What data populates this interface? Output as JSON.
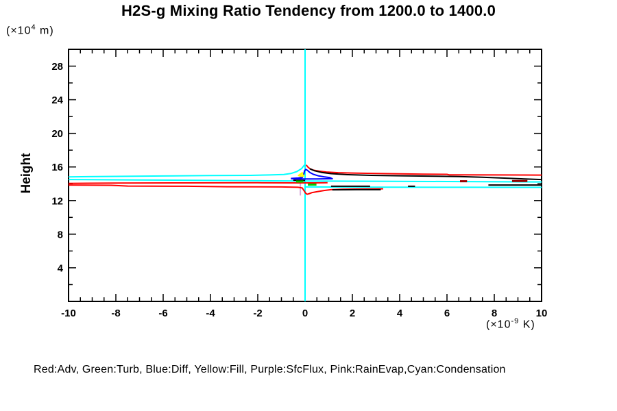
{
  "title": "H2S-g Mixing Ratio Tendency from 1200.0 to 1400.0",
  "y_axis": {
    "name": "Height",
    "unit_open": "(×10",
    "unit_sup": "4",
    "unit_close": " m)"
  },
  "x_axis": {
    "unit_open": "(×10",
    "unit_sup": "-9",
    "unit_close": " K)"
  },
  "legend": "Red:Adv, Green:Turb, Blue:Diff, Yellow:Fill, Purple:SfcFlux, Pink:RainEvap,Cyan:Condensation",
  "colors": {
    "adv": "#ff0000",
    "turb": "#00cc00",
    "diff": "#0000ff",
    "fill": "#ffff00",
    "sfcflux": "#d9a6d9",
    "rainevap": "#ff9ec4",
    "condensation": "#00ffff",
    "total": "#000000"
  },
  "chart_data": {
    "type": "line",
    "title": "H2S-g Mixing Ratio Tendency from 1200.0 to 1400.0",
    "xlabel": "(×10-9 K)",
    "ylabel": "Height (×10 4 m)",
    "x_range": [
      -10,
      10
    ],
    "y_range": [
      0,
      30
    ],
    "x_major_ticks": [
      -10,
      -8,
      -6,
      -4,
      -2,
      0,
      2,
      4,
      6,
      8,
      10
    ],
    "x_minor_step": 0.5,
    "y_major_ticks": [
      4,
      8,
      12,
      16,
      20,
      24,
      28
    ],
    "y_minor_step": 2,
    "grid": false,
    "legend_position": "bottom-text-line",
    "series": [
      {
        "name": "condensation-zero-vertical",
        "color": "#00ffff",
        "width": 2,
        "points": [
          [
            0,
            0
          ],
          [
            0,
            30
          ]
        ]
      },
      {
        "name": "sfcflux-vertical",
        "color": "#d9a6d9",
        "width": 2,
        "points": [
          [
            -0.2,
            12.6
          ],
          [
            -0.2,
            15.1
          ]
        ]
      },
      {
        "name": "condensation-upper",
        "color": "#00ffff",
        "width": 2,
        "points": [
          [
            -10,
            14.82
          ],
          [
            -8,
            14.88
          ],
          [
            -6,
            14.93
          ],
          [
            -4,
            14.98
          ],
          [
            -2.3,
            15.0
          ],
          [
            -1.5,
            15.05
          ],
          [
            -0.9,
            15.1
          ],
          [
            -0.6,
            15.22
          ],
          [
            -0.35,
            15.45
          ],
          [
            -0.15,
            15.8
          ],
          [
            -0.05,
            16.15
          ],
          [
            0,
            16.3
          ]
        ]
      },
      {
        "name": "condensation-mid",
        "color": "#00ffff",
        "width": 2,
        "points": [
          [
            -10,
            14.5
          ],
          [
            -7,
            14.45
          ],
          [
            -4,
            14.4
          ],
          [
            -1.5,
            14.35
          ],
          [
            0,
            14.32
          ],
          [
            3,
            14.3
          ],
          [
            6,
            14.27
          ],
          [
            10,
            14.22
          ]
        ]
      },
      {
        "name": "condensation-lower",
        "color": "#00ffff",
        "width": 2,
        "points": [
          [
            0,
            13.62
          ],
          [
            3,
            13.6
          ],
          [
            7,
            13.58
          ],
          [
            10,
            13.57
          ]
        ]
      },
      {
        "name": "adv-upper-left",
        "color": "#ff0000",
        "width": 2,
        "points": [
          [
            -10,
            14.05
          ],
          [
            -8,
            14.08
          ],
          [
            -5,
            14.1
          ],
          [
            -2,
            14.12
          ],
          [
            -0.5,
            14.1
          ],
          [
            0.4,
            14.1
          ],
          [
            0.95,
            14.12
          ]
        ]
      },
      {
        "name": "adv-peak-right",
        "color": "#ff0000",
        "width": 2,
        "points": [
          [
            0.05,
            16.25
          ],
          [
            0.1,
            16.05
          ],
          [
            0.2,
            15.8
          ],
          [
            0.35,
            15.62
          ],
          [
            0.6,
            15.5
          ],
          [
            0.9,
            15.4
          ],
          [
            1.4,
            15.32
          ],
          [
            2.2,
            15.26
          ],
          [
            3.5,
            15.2
          ],
          [
            5,
            15.15
          ],
          [
            6,
            15.12
          ],
          [
            6.1,
            15.06
          ],
          [
            8,
            15.05
          ],
          [
            10,
            15.03
          ]
        ]
      },
      {
        "name": "adv-lower",
        "color": "#ff0000",
        "width": 2,
        "points": [
          [
            -10,
            13.85
          ],
          [
            -8.2,
            13.82
          ],
          [
            -7.5,
            13.73
          ],
          [
            -5,
            13.7
          ],
          [
            -3.3,
            13.65
          ],
          [
            -1,
            13.62
          ],
          [
            -0.3,
            13.58
          ],
          [
            -0.12,
            13.5
          ],
          [
            -0.05,
            13.2
          ],
          [
            0.02,
            12.9
          ],
          [
            0.08,
            12.75
          ],
          [
            0.15,
            12.8
          ],
          [
            0.3,
            12.95
          ],
          [
            0.5,
            13.05
          ],
          [
            0.8,
            13.2
          ],
          [
            1.1,
            13.3
          ],
          [
            1.6,
            13.35
          ],
          [
            2.4,
            13.38
          ],
          [
            3.3,
            13.4
          ]
        ]
      },
      {
        "name": "total-upper-right",
        "color": "#000000",
        "width": 2,
        "points": [
          [
            0.2,
            15.78
          ],
          [
            0.4,
            15.55
          ],
          [
            0.7,
            15.35
          ],
          [
            1.1,
            15.2
          ],
          [
            1.8,
            15.08
          ],
          [
            2.8,
            15.0
          ],
          [
            4,
            14.95
          ],
          [
            5.5,
            14.9
          ],
          [
            6.5,
            14.85
          ],
          [
            7.5,
            14.78
          ],
          [
            8.6,
            14.65
          ],
          [
            9.5,
            14.55
          ],
          [
            10,
            14.5
          ]
        ]
      },
      {
        "name": "total-mid-left-dash",
        "color": "#000000",
        "width": 2,
        "points": [
          [
            -0.5,
            14.42
          ],
          [
            -0.1,
            14.4
          ],
          [
            0,
            14.38
          ]
        ]
      },
      {
        "name": "total-lower-right",
        "color": "#000000",
        "width": 2,
        "points": [
          [
            1.15,
            13.28
          ],
          [
            2.2,
            13.3
          ],
          [
            3.2,
            13.3
          ]
        ]
      },
      {
        "name": "total-dash-a",
        "color": "#000000",
        "width": 2,
        "points": [
          [
            1.1,
            13.7
          ],
          [
            2.75,
            13.7
          ]
        ]
      },
      {
        "name": "total-dash-b",
        "color": "#000000",
        "width": 2,
        "points": [
          [
            4.35,
            13.7
          ],
          [
            4.65,
            13.7
          ]
        ]
      },
      {
        "name": "total-dash-c",
        "color": "#000000",
        "width": 2,
        "points": [
          [
            7.75,
            13.85
          ],
          [
            10,
            13.85
          ]
        ]
      },
      {
        "name": "dark-red-dash-a",
        "color": "#990000",
        "width": 3,
        "points": [
          [
            6.55,
            14.3
          ],
          [
            6.85,
            14.3
          ]
        ]
      },
      {
        "name": "dark-red-dash-b",
        "color": "#990000",
        "width": 3,
        "points": [
          [
            8.75,
            14.32
          ],
          [
            9.4,
            14.32
          ]
        ]
      },
      {
        "name": "diff-loop",
        "color": "#0000ff",
        "width": 2,
        "points": [
          [
            -0.6,
            14.63
          ],
          [
            -0.3,
            14.68
          ],
          [
            -0.12,
            14.75
          ],
          [
            -0.06,
            15.1
          ],
          [
            -0.02,
            15.55
          ],
          [
            0.03,
            15.72
          ],
          [
            0.1,
            15.6
          ],
          [
            0.2,
            15.35
          ],
          [
            0.35,
            15.12
          ],
          [
            0.55,
            14.95
          ],
          [
            0.8,
            14.83
          ],
          [
            1.05,
            14.73
          ],
          [
            1.15,
            14.6
          ],
          [
            0.5,
            14.57
          ],
          [
            -0.1,
            14.58
          ],
          [
            -0.6,
            14.6
          ]
        ]
      },
      {
        "name": "turb-dash-left",
        "color": "#00cc00",
        "width": 3,
        "points": [
          [
            -0.38,
            14.27
          ],
          [
            -0.07,
            14.27
          ]
        ]
      },
      {
        "name": "turb-dash-right",
        "color": "#00cc00",
        "width": 3,
        "points": [
          [
            0.12,
            13.9
          ],
          [
            0.48,
            13.9
          ]
        ]
      },
      {
        "name": "fill-squiggle",
        "color": "#ffff00",
        "width": 2,
        "points": [
          [
            -0.1,
            15.35
          ],
          [
            -0.2,
            15.15
          ],
          [
            -0.28,
            14.98
          ],
          [
            -0.12,
            14.88
          ],
          [
            -0.05,
            15.0
          ],
          [
            -0.18,
            15.12
          ],
          [
            -0.08,
            15.3
          ]
        ]
      }
    ]
  }
}
